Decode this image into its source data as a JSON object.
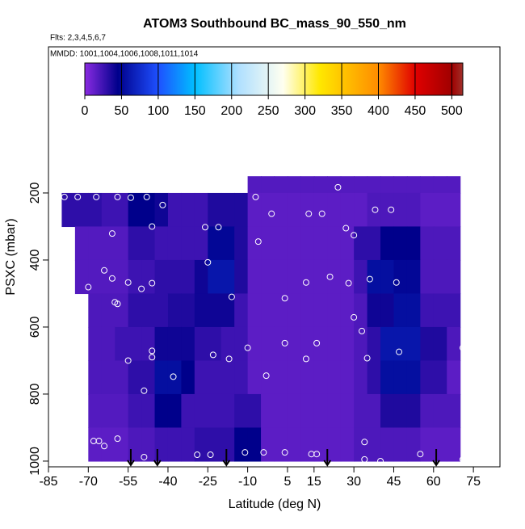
{
  "chart_data": {
    "type": "heatmap",
    "title": "ATOM3 Southbound BC_mass_90_550_nm",
    "subtitle": "Flts: 2,3,4,5,6,7",
    "note": "MMDD: 1001,1004,1006,1008,1011,1014",
    "x_label": "Latitude (deg N)",
    "y_label": "PSXC (mbar)",
    "xlim": [
      -85,
      85
    ],
    "xticks": [
      -85,
      -70,
      -55,
      -40,
      -25,
      -10,
      5,
      15,
      30,
      45,
      60,
      75
    ],
    "ylim": [
      1017,
      -236
    ],
    "yticks": [
      200,
      400,
      600,
      800,
      1000
    ],
    "x_edges": [
      -80,
      -75,
      -70,
      -65,
      -60,
      -55,
      -50,
      -45,
      -40,
      -35,
      -30,
      -25,
      -20,
      -15,
      -10,
      -5,
      0,
      5,
      10,
      15,
      20,
      25,
      30,
      35,
      40,
      45,
      50,
      55,
      60,
      65,
      70
    ],
    "y_edges": [
      150,
      200,
      300,
      400,
      500,
      600,
      700,
      800,
      900,
      1000
    ],
    "z": [
      [
        null,
        null,
        null,
        null,
        null,
        null,
        null,
        null,
        null,
        null,
        null,
        null,
        null,
        null,
        18,
        18,
        18,
        18,
        18,
        18,
        18,
        18,
        18,
        18,
        18,
        18,
        18,
        18,
        18,
        18
      ],
      [
        30,
        30,
        30,
        25,
        25,
        45,
        45,
        40,
        25,
        25,
        25,
        35,
        35,
        35,
        15,
        15,
        15,
        15,
        15,
        15,
        15,
        15,
        15,
        20,
        20,
        20,
        20,
        15,
        15,
        15
      ],
      [
        null,
        18,
        18,
        18,
        18,
        30,
        30,
        25,
        25,
        25,
        25,
        50,
        50,
        35,
        15,
        15,
        15,
        15,
        15,
        15,
        15,
        15,
        30,
        30,
        45,
        45,
        45,
        20,
        20,
        20
      ],
      [
        null,
        18,
        18,
        18,
        18,
        25,
        25,
        30,
        30,
        30,
        40,
        60,
        60,
        35,
        15,
        15,
        15,
        15,
        15,
        15,
        15,
        15,
        25,
        55,
        55,
        50,
        50,
        20,
        20,
        20
      ],
      [
        null,
        null,
        20,
        20,
        20,
        30,
        30,
        30,
        35,
        35,
        40,
        40,
        40,
        25,
        15,
        15,
        15,
        15,
        15,
        15,
        15,
        15,
        20,
        40,
        40,
        55,
        55,
        25,
        25,
        25
      ],
      [
        null,
        null,
        20,
        20,
        25,
        25,
        25,
        40,
        40,
        40,
        30,
        30,
        25,
        25,
        15,
        15,
        15,
        15,
        15,
        15,
        15,
        15,
        20,
        30,
        60,
        60,
        60,
        35,
        35,
        20
      ],
      [
        null,
        null,
        20,
        20,
        20,
        30,
        30,
        55,
        55,
        45,
        25,
        25,
        25,
        25,
        15,
        15,
        15,
        15,
        15,
        15,
        15,
        15,
        20,
        30,
        55,
        55,
        55,
        30,
        30,
        15
      ],
      [
        null,
        null,
        18,
        18,
        18,
        25,
        25,
        45,
        45,
        25,
        25,
        25,
        25,
        30,
        30,
        15,
        15,
        15,
        15,
        15,
        15,
        15,
        20,
        20,
        35,
        35,
        35,
        20,
        20,
        20
      ],
      [
        null,
        null,
        15,
        15,
        15,
        20,
        20,
        25,
        25,
        25,
        30,
        30,
        30,
        45,
        45,
        15,
        15,
        15,
        15,
        15,
        15,
        15,
        20,
        20,
        20,
        20,
        20,
        15,
        15,
        15
      ]
    ],
    "colorscale": [
      [
        0,
        "#8a2be2"
      ],
      [
        45,
        "#00008b"
      ],
      [
        100,
        "#1e50ff"
      ],
      [
        150,
        "#00bfff"
      ],
      [
        210,
        "#b0e0ff"
      ],
      [
        270,
        "#fffff0"
      ],
      [
        320,
        "#ffe800"
      ],
      [
        400,
        "#ff8c00"
      ],
      [
        450,
        "#e00000"
      ],
      [
        500,
        "#a00000"
      ],
      [
        515,
        "#a0302a"
      ]
    ],
    "colorbar_lim": [
      0,
      515
    ],
    "colorbar_ticks": [
      0,
      50,
      100,
      150,
      200,
      250,
      300,
      350,
      400,
      450,
      500
    ],
    "points": {
      "color": "#ffffff",
      "x": [
        -79,
        -74,
        -67,
        -59,
        -54,
        -48,
        -42,
        -14,
        -7,
        -1,
        13,
        18,
        24,
        38,
        44,
        27,
        30,
        -6,
        -61,
        -46,
        -26,
        -21,
        -25,
        -64,
        -61,
        -70,
        -55,
        -50,
        -46,
        -16,
        4,
        12,
        21,
        28,
        36,
        46,
        -60,
        -59,
        30,
        33,
        -46,
        -46,
        -55,
        -23,
        -17,
        -10,
        4,
        16,
        12,
        35,
        47,
        71,
        -38,
        -3,
        -49,
        -68,
        -66,
        -59,
        -64,
        -49,
        -29,
        -24,
        -11,
        -4,
        4,
        14,
        16,
        34,
        34,
        40,
        55,
        71
      ],
      "y": [
        212,
        212,
        212,
        212,
        214,
        212,
        236,
        183,
        212,
        262,
        262,
        262,
        183,
        250,
        250,
        305,
        326,
        345,
        321,
        300,
        302,
        302,
        407,
        431,
        455,
        481,
        467,
        486,
        469,
        510,
        514,
        467,
        450,
        469,
        457,
        467,
        526,
        531,
        571,
        612,
        671,
        690,
        700,
        683,
        695,
        662,
        648,
        648,
        695,
        693,
        674,
        662,
        748,
        745,
        790,
        940,
        940,
        933,
        955,
        988,
        981,
        981,
        974,
        974,
        974,
        979,
        979,
        943,
        995,
        1000,
        979,
        995
      ]
    },
    "markers": [
      -54,
      -44,
      -18,
      20,
      61
    ]
  }
}
